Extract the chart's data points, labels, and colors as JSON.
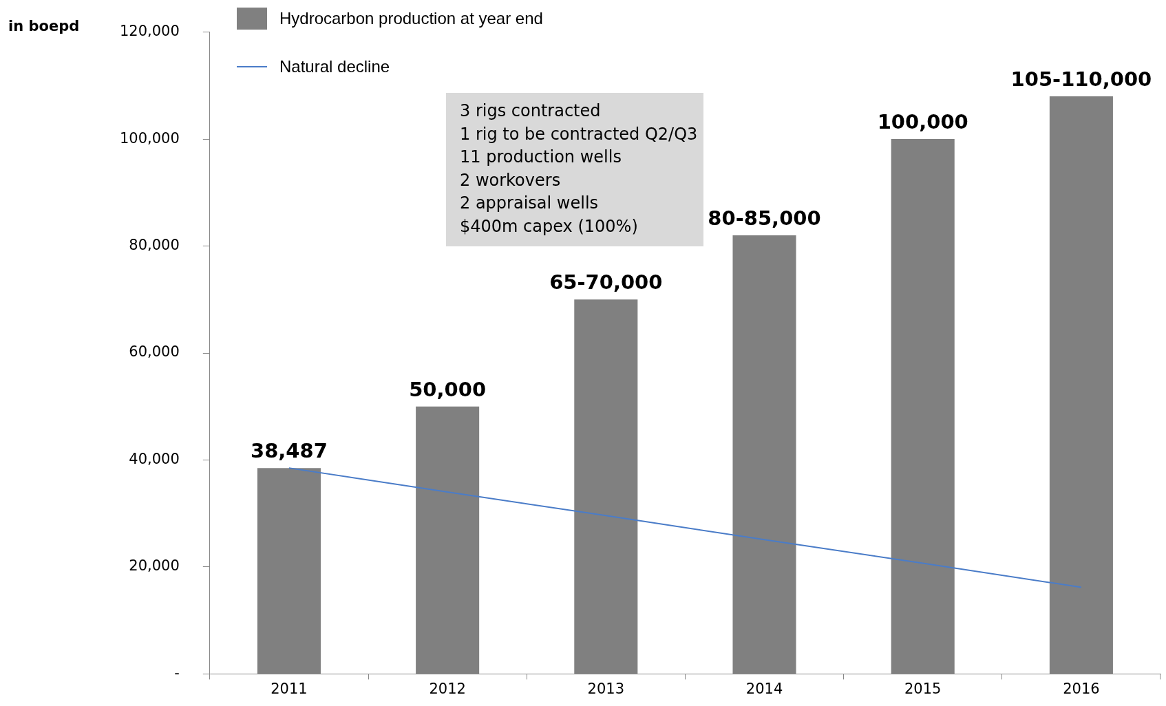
{
  "chart_data": {
    "type": "bar",
    "ylabel": "in boepd",
    "categories": [
      "2011",
      "2012",
      "2013",
      "2014",
      "2015",
      "2016"
    ],
    "series": [
      {
        "name": "Hydrocarbon production at year end",
        "color": "#808080",
        "values": [
          38487,
          50000,
          70000,
          82000,
          100000,
          108000
        ],
        "value_labels": [
          "38,487",
          "50,000",
          "65-70,000",
          "80-85,000",
          "100,000",
          "105-110,000"
        ]
      },
      {
        "name": "Natural decline",
        "type": "line",
        "color": "#4a7cc8",
        "values": [
          38500,
          34000,
          29600,
          25100,
          20700,
          16200
        ]
      }
    ],
    "ylim": [
      0,
      120000
    ],
    "yticks": [
      {
        "value": 0,
        "label": "-"
      },
      {
        "value": 20000,
        "label": "20,000"
      },
      {
        "value": 40000,
        "label": "40,000"
      },
      {
        "value": 60000,
        "label": "60,000"
      },
      {
        "value": 80000,
        "label": "80,000"
      },
      {
        "value": 100000,
        "label": "100,000"
      },
      {
        "value": 120000,
        "label": "120,000"
      }
    ],
    "grid": false,
    "legend": "top left",
    "marker": "none",
    "annotations": [
      "3 rigs contracted",
      "1 rig to be contracted Q2/Q3",
      "11 production wells",
      "2 workovers",
      "2 appraisal wells",
      "$400m capex (100%)"
    ]
  }
}
